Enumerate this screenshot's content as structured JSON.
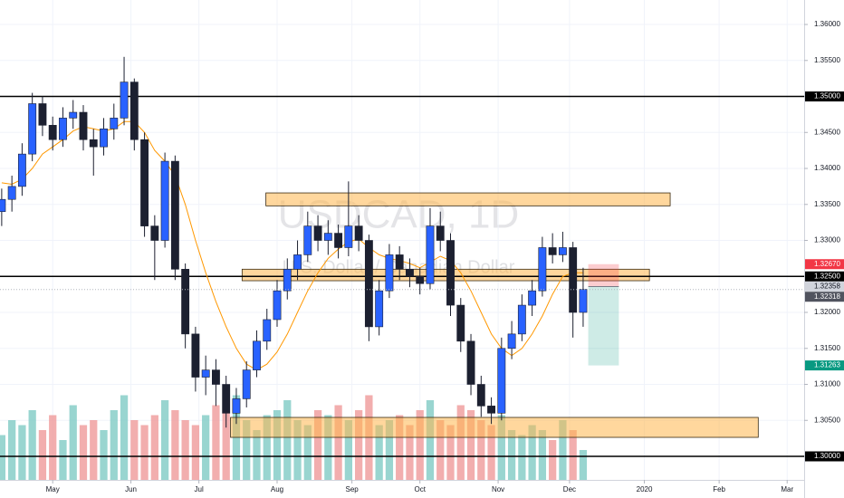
{
  "chart_data": {
    "type": "candlestick",
    "symbol": "USDCAD, 1D",
    "description": "U.S. Dollar / Canadian Dollar",
    "x": [
      -15,
      -12,
      -9,
      -6,
      -3,
      0,
      3,
      6,
      9,
      12,
      15,
      18,
      21,
      24,
      27,
      30,
      33,
      36,
      39,
      42,
      45,
      48,
      51,
      54,
      57,
      60,
      63,
      66,
      69,
      72,
      75,
      78,
      81,
      84,
      87,
      90,
      93,
      96,
      99,
      102,
      105,
      108,
      111,
      114,
      117,
      120,
      123,
      126,
      129,
      132,
      135,
      138,
      141,
      144,
      147,
      150,
      153,
      156
    ],
    "open": [
      1.334,
      1.3357,
      1.3375,
      1.342,
      1.349,
      1.346,
      1.344,
      1.347,
      1.3478,
      1.344,
      1.343,
      1.3455,
      1.347,
      1.352,
      1.344,
      1.332,
      1.33,
      1.341,
      1.326,
      1.317,
      1.311,
      1.312,
      1.31,
      1.306,
      1.308,
      1.312,
      1.316,
      1.319,
      1.323,
      1.326,
      1.328,
      1.332,
      1.33,
      1.331,
      1.329,
      1.332,
      1.33,
      1.318,
      1.323,
      1.328,
      1.326,
      1.325,
      1.324,
      1.332,
      1.33,
      1.321,
      1.316,
      1.31,
      1.307,
      1.306,
      1.315,
      1.317,
      1.321,
      1.323,
      1.329,
      1.328,
      1.329,
      1.32
    ],
    "high": [
      1.3372,
      1.339,
      1.3435,
      1.3505,
      1.35,
      1.3472,
      1.3485,
      1.3495,
      1.3488,
      1.3455,
      1.347,
      1.349,
      1.3555,
      1.3525,
      1.345,
      1.3335,
      1.3422,
      1.3418,
      1.3268,
      1.318,
      1.314,
      1.3135,
      1.3112,
      1.3095,
      1.3132,
      1.3175,
      1.3205,
      1.3245,
      1.3275,
      1.33,
      1.334,
      1.3335,
      1.3328,
      1.3322,
      1.3382,
      1.3335,
      1.3308,
      1.3245,
      1.3295,
      1.3292,
      1.3275,
      1.3262,
      1.3345,
      1.334,
      1.331,
      1.322,
      1.317,
      1.3112,
      1.3082,
      1.3165,
      1.3188,
      1.3225,
      1.3245,
      1.3305,
      1.331,
      1.3312,
      1.3298,
      1.3262
    ],
    "low": [
      1.332,
      1.334,
      1.3362,
      1.341,
      1.3445,
      1.3425,
      1.343,
      1.3455,
      1.3425,
      1.339,
      1.3418,
      1.344,
      1.346,
      1.3425,
      1.3305,
      1.3245,
      1.329,
      1.3245,
      1.315,
      1.309,
      1.3085,
      1.307,
      1.304,
      1.3045,
      1.3068,
      1.311,
      1.3148,
      1.318,
      1.3218,
      1.3245,
      1.327,
      1.3285,
      1.328,
      1.3275,
      1.3278,
      1.3285,
      1.316,
      1.3168,
      1.322,
      1.3245,
      1.3235,
      1.3225,
      1.3232,
      1.3285,
      1.3195,
      1.3145,
      1.3085,
      1.3055,
      1.3045,
      1.305,
      1.3135,
      1.316,
      1.3195,
      1.3222,
      1.3268,
      1.327,
      1.3165,
      1.318
    ],
    "close": [
      1.3357,
      1.3375,
      1.342,
      1.349,
      1.346,
      1.344,
      1.347,
      1.3478,
      1.344,
      1.343,
      1.3455,
      1.347,
      1.352,
      1.344,
      1.332,
      1.33,
      1.341,
      1.326,
      1.317,
      1.311,
      1.312,
      1.31,
      1.306,
      1.308,
      1.312,
      1.316,
      1.319,
      1.323,
      1.326,
      1.328,
      1.332,
      1.33,
      1.331,
      1.329,
      1.332,
      1.33,
      1.318,
      1.323,
      1.328,
      1.326,
      1.325,
      1.324,
      1.332,
      1.33,
      1.321,
      1.316,
      1.31,
      1.307,
      1.306,
      1.315,
      1.317,
      1.321,
      1.323,
      1.329,
      1.328,
      1.329,
      1.32,
      1.3232
    ],
    "volume": [
      45,
      60,
      55,
      70,
      50,
      65,
      40,
      75,
      55,
      60,
      50,
      70,
      85,
      60,
      55,
      65,
      80,
      70,
      60,
      55,
      65,
      75,
      70,
      85,
      60,
      50,
      65,
      70,
      80,
      60,
      55,
      70,
      65,
      75,
      60,
      70,
      85,
      55,
      60,
      65,
      55,
      70,
      80,
      60,
      55,
      75,
      70,
      60,
      55,
      65,
      50,
      45,
      55,
      50,
      40,
      60,
      50,
      30
    ],
    "ma": [
      1.338,
      1.3378,
      1.3385,
      1.34,
      1.342,
      1.343,
      1.344,
      1.3452,
      1.3458,
      1.3455,
      1.3452,
      1.3455,
      1.3465,
      1.3465,
      1.345,
      1.3425,
      1.341,
      1.339,
      1.335,
      1.33,
      1.3255,
      1.3215,
      1.318,
      1.315,
      1.3128,
      1.312,
      1.3128,
      1.3145,
      1.317,
      1.32,
      1.323,
      1.3255,
      1.3275,
      1.3288,
      1.3298,
      1.3302,
      1.329,
      1.328,
      1.3275,
      1.3272,
      1.3268,
      1.3262,
      1.327,
      1.3278,
      1.3272,
      1.3255,
      1.323,
      1.32,
      1.317,
      1.315,
      1.314,
      1.315,
      1.317,
      1.3195,
      1.3225,
      1.325,
      1.3255,
      1.3255
    ],
    "up_color": "#2962ff",
    "down_color": "#1c2030",
    "volume_up_color": "#80cbc4",
    "volume_down_color": "#ef9a9a",
    "ma_color": "#ff9800",
    "zone_color": "#ffb74d",
    "level_color": "#000000",
    "xlim": [
      -15.5,
      221
    ],
    "xticks": [
      {
        "value": 0,
        "label": "May"
      },
      {
        "value": 23,
        "label": "Jun"
      },
      {
        "value": 43,
        "label": "Jul"
      },
      {
        "value": 66,
        "label": "Aug"
      },
      {
        "value": 88,
        "label": "Sep"
      },
      {
        "value": 108,
        "label": "Oct"
      },
      {
        "value": 131,
        "label": "Nov"
      },
      {
        "value": 152,
        "label": "Dec"
      },
      {
        "value": 174,
        "label": "2020"
      },
      {
        "value": 196,
        "label": "Feb"
      },
      {
        "value": 216,
        "label": "Mar"
      }
    ],
    "ylim": [
      1.29673,
      1.3634
    ],
    "yticks": [
      {
        "value": 1.36,
        "label": "1.36000"
      },
      {
        "value": 1.355,
        "label": "1.35500"
      },
      {
        "value": 1.35,
        "label": "1.35000"
      },
      {
        "value": 1.345,
        "label": "1.34500"
      },
      {
        "value": 1.34,
        "label": "1.34000"
      },
      {
        "value": 1.335,
        "label": "1.33500"
      },
      {
        "value": 1.33,
        "label": "1.33000"
      },
      {
        "value": 1.325,
        "label": "1.32500"
      },
      {
        "value": 1.32,
        "label": "1.32000"
      },
      {
        "value": 1.315,
        "label": "1.31500"
      },
      {
        "value": 1.31,
        "label": "1.31000"
      },
      {
        "value": 1.305,
        "label": "1.30500"
      },
      {
        "value": 1.3,
        "label": "1.30000"
      }
    ],
    "volume_lim": [
      0,
      100
    ],
    "grid": true,
    "levels": [
      {
        "value": 1.35,
        "label": "1.35000"
      },
      {
        "value": 1.325,
        "label": "1.32500"
      },
      {
        "value": 1.3,
        "label": "1.30000"
      }
    ],
    "zones": [
      {
        "x": [
          62.7,
          181.6
        ],
        "y": [
          1.3348,
          1.3366
        ]
      },
      {
        "x": [
          55.7,
          175.5
        ],
        "y": [
          1.3244,
          1.326
        ]
      },
      {
        "x": [
          52.3,
          207.5
        ],
        "y": [
          1.30264,
          1.30541
        ]
      }
    ],
    "position": {
      "x": [
        157.5,
        166.5
      ],
      "stop": {
        "value": 1.3267,
        "label": "1.32670"
      },
      "entry": {
        "value": 1.32358,
        "label": "1.32358"
      },
      "target": {
        "value": 1.31263,
        "label": "1.31263"
      }
    },
    "last_price": {
      "value": 1.32318,
      "label": "1.32318"
    }
  }
}
